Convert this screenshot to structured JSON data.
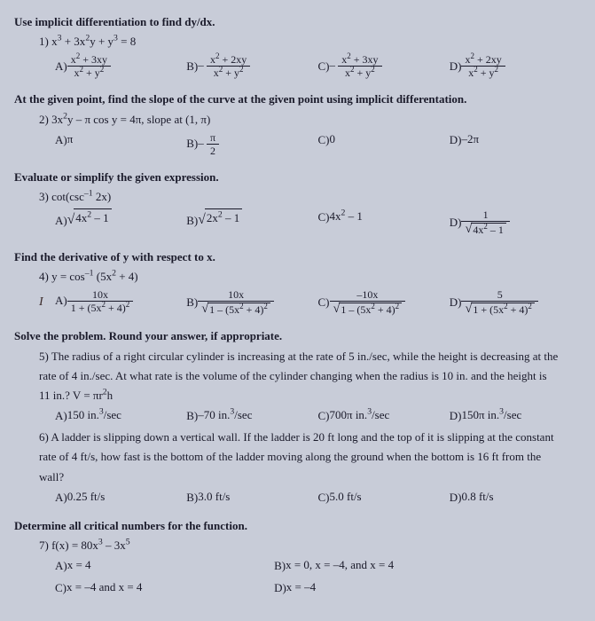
{
  "colors": {
    "background": "#c8ccd8",
    "text": "#1a1a2a"
  },
  "typography": {
    "font_family": "Times New Roman, serif",
    "body_size": 13,
    "bold_headers": true
  },
  "sections": [
    {
      "header": "Use implicit differentiation to find dy/dx.",
      "questions": [
        {
          "number": "1)",
          "stem_html": "x<sup>3</sup> + 3x<sup>2</sup>y + y<sup>3</sup> = 8",
          "choices": {
            "A": {
              "type": "frac",
              "num": "x<sup>2</sup> + 3xy",
              "den": "x<sup>2</sup> + y<sup>2</sup>",
              "prefix": ""
            },
            "B": {
              "type": "frac",
              "num": "x<sup>2</sup> + 2xy",
              "den": "x<sup>2</sup> + y<sup>2</sup>",
              "prefix": "– "
            },
            "C": {
              "type": "frac",
              "num": "x<sup>2</sup> + 3xy",
              "den": "x<sup>2</sup> + y<sup>2</sup>",
              "prefix": "– "
            },
            "D": {
              "type": "frac",
              "num": "x<sup>2</sup> + 2xy",
              "den": "x<sup>2</sup> + y<sup>2</sup>",
              "prefix": ""
            }
          }
        }
      ]
    },
    {
      "header": "At the given point, find the slope of the curve at the given point using implicit differentation.",
      "questions": [
        {
          "number": "2)",
          "stem_html": "3x<sup>2</sup>y – π cos y = 4π, slope at (1, π)",
          "choices": {
            "A": {
              "type": "text",
              "text": "π"
            },
            "B": {
              "type": "frac",
              "num": "π",
              "den": "2",
              "prefix": "– "
            },
            "C": {
              "type": "text",
              "text": "0"
            },
            "D": {
              "type": "text",
              "text": "–2π"
            }
          }
        }
      ]
    },
    {
      "header": "Evaluate or simplify the given expression.",
      "questions": [
        {
          "number": "3)",
          "stem_html": "cot(csc<sup>–1</sup> 2x)",
          "choices": {
            "A": {
              "type": "sqrt",
              "body": "4x<sup>2</sup> – 1"
            },
            "B": {
              "type": "sqrt",
              "body": "2x<sup>2</sup> – 1"
            },
            "C": {
              "type": "text",
              "text": "4x<sup>2</sup> – 1"
            },
            "D": {
              "type": "frac",
              "num": "1",
              "den_sqrt": "4x<sup>2</sup> – 1"
            }
          }
        }
      ]
    },
    {
      "header": "Find the derivative of y with respect to x.",
      "questions": [
        {
          "number": "4)",
          "stem_html": "y = cos<sup>–1</sup> (5x<sup>2</sup> + 4)",
          "marked_choice": "A",
          "choices": {
            "A": {
              "type": "frac",
              "num": "10x",
              "den": "1 + (5x<sup>2</sup> + 4)<sup>2</sup>"
            },
            "B": {
              "type": "frac",
              "num": "10x",
              "den_sqrt": "1 – (5x<sup>2</sup> + 4)<sup>2</sup>"
            },
            "C": {
              "type": "frac",
              "num": "–10x",
              "den_sqrt": "1 – (5x<sup>2</sup> + 4)<sup>2</sup>"
            },
            "D": {
              "type": "frac",
              "num": "5",
              "den_sqrt": "1 + (5x<sup>2</sup> + 4)<sup>2</sup>"
            }
          }
        }
      ]
    },
    {
      "header": "Solve the problem. Round your answer, if appropriate.",
      "questions": [
        {
          "number": "5)",
          "body_lines": [
            "The radius of a right circular cylinder is increasing at the rate of 5 in./sec, while the height is decreasing at the",
            "rate of 4 in./sec. At what rate is the volume of the cylinder changing when the radius is 10 in. and the height is",
            "11 in.?   V = πr<sup>2</sup>h"
          ],
          "choices": {
            "A": {
              "type": "text",
              "text": "150 in.<sup>3</sup>/sec"
            },
            "B": {
              "type": "text",
              "text": "–70 in.<sup>3</sup>/sec"
            },
            "C": {
              "type": "text",
              "text": "700π in.<sup>3</sup>/sec"
            },
            "D": {
              "type": "text",
              "text": "150π in.<sup>3</sup>/sec"
            }
          }
        },
        {
          "number": "6)",
          "body_lines": [
            "A ladder is slipping down a vertical wall. If the ladder is 20 ft long and the top of it  is slipping at the constant",
            "rate of 4 ft/s, how fast is the bottom of the ladder moving along the ground when the bottom is 16 ft from the",
            "wall?"
          ],
          "choices": {
            "A": {
              "type": "text",
              "text": "0.25 ft/s"
            },
            "B": {
              "type": "text",
              "text": "3.0 ft/s"
            },
            "C": {
              "type": "text",
              "text": "5.0 ft/s"
            },
            "D": {
              "type": "text",
              "text": "0.8 ft/s"
            }
          }
        }
      ]
    },
    {
      "header": "Determine all critical numbers for the function.",
      "questions": [
        {
          "number": "7)",
          "stem_html": "f(x) = 80x<sup>3</sup> – 3x<sup>5</sup>",
          "choices_layout": "two-col",
          "choices": {
            "A": {
              "type": "text",
              "text": "x = 4"
            },
            "B": {
              "type": "text",
              "text": "x = 0, x = –4, and x =  4"
            },
            "C": {
              "type": "text",
              "text": "x = –4 and x = 4"
            },
            "D": {
              "type": "text",
              "text": "x = –4"
            }
          }
        }
      ]
    }
  ]
}
